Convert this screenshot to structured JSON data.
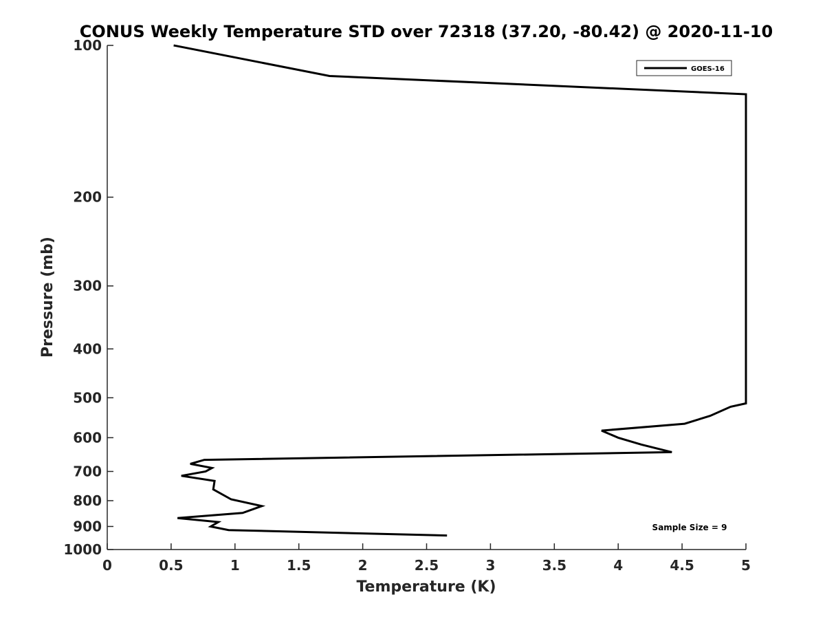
{
  "chart_data": {
    "type": "line",
    "title": "CONUS Weekly Temperature STD over 72318 (37.20, -80.42) @ 2020-11-10",
    "xlabel": "Temperature (K)",
    "ylabel": "Pressure (mb)",
    "xlim": [
      0,
      5
    ],
    "ylim": [
      1000,
      100
    ],
    "y_scale": "log",
    "y_reversed": true,
    "xticks": [
      "0",
      "0.5",
      "1",
      "1.5",
      "2",
      "2.5",
      "3",
      "3.5",
      "4",
      "4.5",
      "5"
    ],
    "yticks": [
      "100",
      "200",
      "300",
      "400",
      "500",
      "600",
      "700",
      "800",
      "900",
      "1000"
    ],
    "grid": false,
    "legend_position": "top-right",
    "annotation": "Sample Size = 9",
    "series": [
      {
        "name": "GOES-16",
        "color": "#000000",
        "x": [
          0.52,
          1.74,
          5.0,
          5.0,
          4.88,
          4.72,
          4.52,
          3.87,
          4.0,
          4.18,
          4.42,
          0.76,
          0.65,
          0.82,
          0.77,
          0.58,
          0.84,
          0.83,
          0.97,
          1.21,
          1.06,
          0.55,
          0.87,
          0.81,
          0.95,
          2.66
        ],
        "y": [
          100,
          115,
          125,
          513,
          521,
          543,
          563,
          581,
          600,
          619,
          641,
          664,
          676,
          689,
          700,
          714,
          731,
          760,
          795,
          820,
          846,
          866,
          882,
          900,
          915,
          938
        ]
      }
    ]
  }
}
